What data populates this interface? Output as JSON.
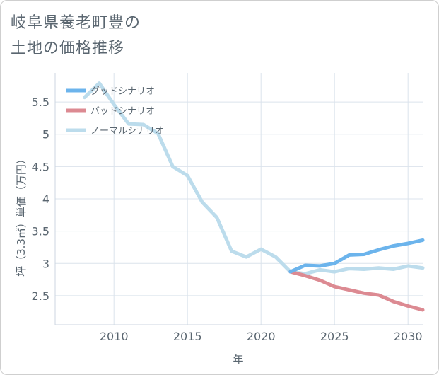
{
  "chart_data": {
    "type": "line",
    "title_lines": [
      "岐阜県養老町豊の",
      "土地の価格推移"
    ],
    "xlabel": "年",
    "ylabel": "坪（3.3㎡）単価（万円）",
    "xlim": [
      2006,
      2031
    ],
    "ylim": [
      2.05,
      5.95
    ],
    "x_ticks": [
      2010,
      2015,
      2020,
      2025,
      2030
    ],
    "y_ticks": [
      2.5,
      3,
      3.5,
      4,
      4.5,
      5,
      5.5
    ],
    "grid": true,
    "legend_position": "top-left",
    "series": [
      {
        "name": "グッドシナリオ",
        "color": "#6cb4ec",
        "x": [
          2022,
          2023,
          2024,
          2025,
          2026,
          2027,
          2028,
          2029,
          2030,
          2031
        ],
        "y": [
          2.87,
          2.97,
          2.96,
          3.0,
          3.13,
          3.14,
          3.21,
          3.27,
          3.31,
          3.36
        ]
      },
      {
        "name": "バッドシナリオ",
        "color": "#dc8a92",
        "x": [
          2022,
          2023,
          2024,
          2025,
          2026,
          2027,
          2028,
          2029,
          2030,
          2031
        ],
        "y": [
          2.87,
          2.81,
          2.74,
          2.64,
          2.59,
          2.54,
          2.51,
          2.41,
          2.34,
          2.28
        ]
      },
      {
        "name": "ノーマルシナリオ",
        "color": "#bcdcec",
        "x": [
          2008,
          2009,
          2010,
          2011,
          2012,
          2013,
          2014,
          2015,
          2016,
          2017,
          2018,
          2019,
          2020,
          2021,
          2022,
          2023,
          2024,
          2025,
          2026,
          2027,
          2028,
          2029,
          2030,
          2031
        ],
        "y": [
          5.57,
          5.79,
          5.46,
          5.16,
          5.15,
          5.01,
          4.5,
          4.36,
          3.95,
          3.71,
          3.19,
          3.1,
          3.22,
          3.1,
          2.87,
          2.84,
          2.9,
          2.87,
          2.92,
          2.91,
          2.93,
          2.91,
          2.96,
          2.93
        ]
      }
    ]
  }
}
